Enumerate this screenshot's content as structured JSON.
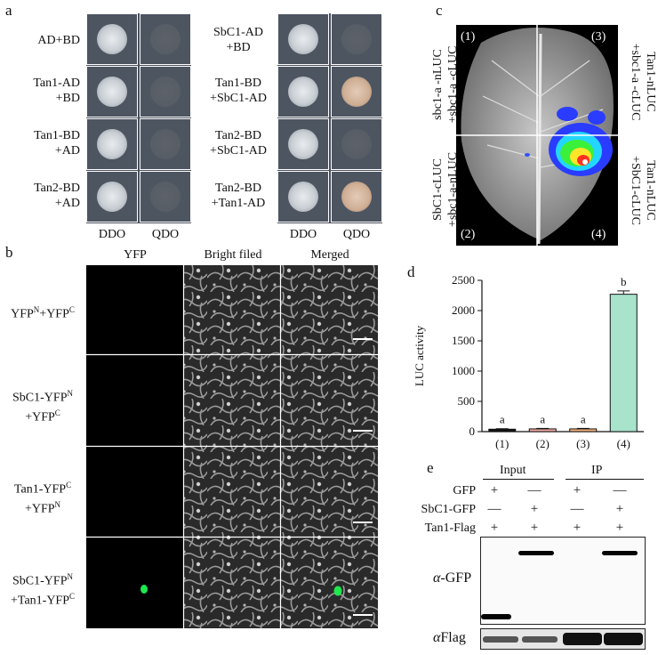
{
  "panel_a": {
    "letter": "a",
    "left_rows": [
      {
        "l1": "AD+BD",
        "l2": ""
      },
      {
        "l1": "Tan1-AD",
        "l2": "+BD"
      },
      {
        "l1": "Tan1-BD",
        "l2": "+AD"
      },
      {
        "l1": "Tan2-BD",
        "l2": "+AD"
      }
    ],
    "right_rows": [
      {
        "l1": "SbC1-AD",
        "l2": "+BD"
      },
      {
        "l1": "Tan1-BD",
        "l2": "+SbC1-AD"
      },
      {
        "l1": "Tan2-BD",
        "l2": "+SbC1-AD"
      },
      {
        "l1": "Tan2-BD",
        "l2": "+Tan1-AD"
      }
    ],
    "col_ddo": "DDO",
    "col_qdo": "QDO"
  },
  "panel_b": {
    "letter": "b",
    "col_yfp": "YFP",
    "col_bright": "Bright filed",
    "col_merged": "Merged",
    "rows": [
      {
        "l1a": "YFP",
        "l1s": "N",
        "l1b": "+YFP",
        "l1s2": "C",
        "l2a": "",
        "l2s": ""
      },
      {
        "l1a": "SbC1-YFP",
        "l1s": "N",
        "l1b": "",
        "l1s2": "",
        "l2a": "+YFP",
        "l2s": "C"
      },
      {
        "l1a": "Tan1-YFP",
        "l1s": "C",
        "l1b": "",
        "l1s2": "",
        "l2a": "+YFP",
        "l2s": "N"
      },
      {
        "l1a": "SbC1-YFP",
        "l1s": "N",
        "l1b": "",
        "l1s2": "",
        "l2a": "+Tan1-YFP",
        "l2s": "C"
      }
    ]
  },
  "panel_c": {
    "letter": "c",
    "q1": "(1)",
    "q2": "(2)",
    "q3": "(3)",
    "q4": "(4)",
    "left_top_l1": "sbc1-a -nLUC",
    "left_top_l2": "+sbc1-a -cLUC",
    "left_bot_l1": "SbC1-cLUC",
    "left_bot_l2": "+sbc1-a-nLUC",
    "right_top_l1": "Tan1-nLUC",
    "right_top_l2": "+sbc1-a -cLUC",
    "right_bot_l1": "Tan1-nLUC",
    "right_bot_l2": "+SbC1-cLUC"
  },
  "panel_d": {
    "letter": "d",
    "chart_data": {
      "type": "bar",
      "categories": [
        "(1)",
        "(2)",
        "(3)",
        "(4)"
      ],
      "values": [
        40,
        45,
        45,
        2270
      ],
      "errors": [
        8,
        8,
        8,
        55
      ],
      "sig_labels": [
        "a",
        "a",
        "a",
        "b"
      ],
      "bar_colors": [
        "#111111",
        "#f2a9a4",
        "#f3b27a",
        "#a8e3cc"
      ],
      "ylabel": "LUC activity",
      "yticks": [
        0,
        500,
        1000,
        1500,
        2000,
        2500
      ],
      "ylim": [
        0,
        2500
      ]
    }
  },
  "panel_e": {
    "letter": "e",
    "input": "Input",
    "ip": "IP",
    "row_labels": [
      "GFP",
      "SbC1-GFP",
      "Tan1-Flag"
    ],
    "signs": [
      [
        "+",
        "—",
        "+",
        "—"
      ],
      [
        "—",
        "+",
        "—",
        "+"
      ],
      [
        "+",
        "+",
        "+",
        "+"
      ]
    ],
    "blot1_alpha": "α",
    "blot1_label": "-GFP",
    "blot2_alpha": "α",
    "blot2_label": "Flag"
  }
}
